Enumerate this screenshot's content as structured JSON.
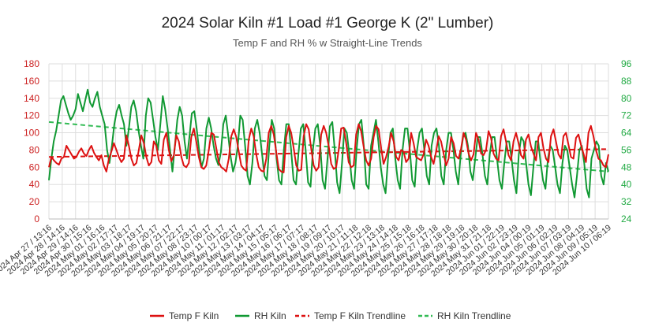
{
  "chart_data": {
    "type": "line",
    "title": "2024 Solar Kiln #1 Load #1 George K (2\" Lumber)",
    "subtitle": "Temp F and RH % w Straight-Line Trends",
    "y_left": {
      "ticks": [
        "0",
        "20",
        "40",
        "60",
        "80",
        "100",
        "120",
        "140",
        "160",
        "180"
      ],
      "lim": [
        0,
        180
      ],
      "color": "#cc2222"
    },
    "y_right": {
      "ticks": [
        "24",
        "32",
        "40",
        "48",
        "56",
        "64",
        "72",
        "80",
        "88",
        "96"
      ],
      "lim": [
        24,
        96
      ],
      "color": "#22aa44"
    },
    "grid": true,
    "legend_position": "bottom",
    "x_tick_labels": [
      "2024 Apr 27 / 13:16",
      "2024 Apr 28 / 14:16",
      "2024 Apr 29 / 14:16",
      "2024 Apr 30 / 15:16",
      "2024 May 01 / 16:16",
      "2024 May 02 / 17:17",
      "2024 May 03 / 18:17",
      "2024 May 04 / 19:17",
      "2024 May 05 / 20:17",
      "2024 May 06 / 21:17",
      "2024 May 07 / 22:17",
      "2024 May 08 / 23:17",
      "2024 May 10 / 00:17",
      "2024 May 11 / 01:17",
      "2024 May 12 / 02:17",
      "2024 May 13 / 03:17",
      "2024 May 14 / 04:17",
      "2024 May 15 / 05:17",
      "2024 May 16 / 06:17",
      "2024 May 17 / 07:17",
      "2024 May 18 / 08:17",
      "2024 May 19 / 09:17",
      "2024 May 20 / 10:17",
      "2024 May 21 / 11:18",
      "2024 May 22 / 12:18",
      "2024 May 23 / 13:18",
      "2024 May 24 / 14:18",
      "2024 May 25 / 15:18",
      "2024 May 26 / 16:18",
      "2024 May 27 / 17:18",
      "2024 May 28 / 18:18",
      "2024 May 29 / 19:18",
      "2024 May 30 / 20:18",
      "2024 May 31 / 21:18",
      "2024 Jun 01 / 22:19",
      "2024 Jun 02 / 23:19",
      "2024 Jun 04 / 00:19",
      "2024 Jun 05 / 01:19",
      "2024 Jun 06 / 02:19",
      "2024 Jun 07 / 03:19",
      "2024 Jun 08 / 04:19",
      "2024 Jun 09 / 05:19",
      "2024 Jun 10 / 06:19"
    ],
    "series": [
      {
        "name": "Temp F Kiln",
        "axis": "left",
        "color": "#dd1111",
        "style": "solid",
        "values": [
          60,
          72,
          68,
          65,
          63,
          70,
          72,
          85,
          80,
          75,
          70,
          72,
          78,
          82,
          76,
          73,
          80,
          85,
          77,
          72,
          68,
          74,
          62,
          55,
          70,
          78,
          88,
          80,
          72,
          66,
          70,
          97,
          85,
          70,
          62,
          65,
          80,
          97,
          88,
          72,
          62,
          66,
          90,
          85,
          68,
          64,
          92,
          100,
          80,
          67,
          74,
          97,
          90,
          72,
          62,
          60,
          65,
          95,
          105,
          90,
          72,
          60,
          58,
          62,
          80,
          100,
          98,
          82,
          66,
          60,
          58,
          55,
          70,
          96,
          104,
          95,
          78,
          62,
          58,
          56,
          92,
          105,
          96,
          75,
          60,
          56,
          55,
          70,
          100,
          108,
          98,
          78,
          58,
          55,
          54,
          95,
          108,
          100,
          82,
          62,
          56,
          57,
          96,
          110,
          104,
          82,
          62,
          56,
          60,
          98,
          108,
          100,
          85,
          64,
          58,
          60,
          80,
          105,
          106,
          88,
          66,
          60,
          62,
          98,
          110,
          102,
          84,
          68,
          62,
          70,
          95,
          108,
          104,
          82,
          64,
          72,
          84,
          100,
          90,
          72,
          68,
          80,
          78,
          66,
          70,
          100,
          88,
          72,
          70,
          68,
          75,
          92,
          85,
          72,
          64,
          78,
          96,
          90,
          76,
          62,
          70,
          95,
          88,
          73,
          70,
          82,
          100,
          92,
          76,
          68,
          75,
          100,
          92,
          76,
          74,
          80,
          102,
          94,
          76,
          70,
          68,
          96,
          104,
          90,
          74,
          68,
          90,
          100,
          88,
          74,
          70,
          92,
          98,
          84,
          76,
          68,
          95,
          100,
          82,
          70,
          66,
          96,
          104,
          90,
          75,
          70,
          96,
          100,
          86,
          72,
          70,
          94,
          98,
          86,
          76,
          66,
          100,
          108,
          96,
          80,
          70,
          68,
          62,
          60,
          75
        ]
      },
      {
        "name": "RH Kiln",
        "axis": "right",
        "color": "#119933",
        "style": "solid",
        "values": [
          42,
          52,
          60,
          65,
          72,
          79,
          81,
          77,
          73,
          70,
          72,
          75,
          82,
          78,
          74,
          79,
          84,
          78,
          76,
          80,
          83,
          76,
          72,
          68,
          56,
          50,
          58,
          68,
          74,
          77,
          72,
          68,
          58,
          66,
          76,
          79,
          74,
          65,
          58,
          52,
          72,
          80,
          78,
          70,
          62,
          56,
          68,
          81,
          75,
          66,
          56,
          46,
          58,
          70,
          76,
          72,
          60,
          52,
          62,
          73,
          74,
          66,
          56,
          48,
          52,
          66,
          71,
          66,
          58,
          52,
          49,
          55,
          68,
          72,
          63,
          53,
          46,
          50,
          58,
          72,
          70,
          58,
          44,
          40,
          50,
          66,
          70,
          64,
          54,
          44,
          42,
          58,
          70,
          66,
          52,
          42,
          40,
          56,
          68,
          68,
          56,
          42,
          40,
          54,
          66,
          68,
          56,
          41,
          39,
          56,
          66,
          68,
          58,
          42,
          38,
          52,
          67,
          69,
          56,
          41,
          36,
          50,
          66,
          64,
          54,
          42,
          38,
          56,
          68,
          70,
          58,
          40,
          38,
          58,
          64,
          70,
          60,
          48,
          40,
          36,
          52,
          64,
          66,
          52,
          42,
          38,
          56,
          66,
          66,
          56,
          42,
          39,
          56,
          64,
          66,
          56,
          44,
          40,
          58,
          64,
          66,
          58,
          44,
          40,
          56,
          64,
          64,
          56,
          46,
          40,
          54,
          62,
          64,
          58,
          46,
          42,
          52,
          62,
          62,
          54,
          44,
          40,
          54,
          62,
          62,
          52,
          42,
          38,
          50,
          60,
          60,
          52,
          42,
          36,
          54,
          62,
          60,
          50,
          40,
          35,
          48,
          60,
          60,
          50,
          42,
          38,
          52,
          58,
          56,
          48,
          40,
          36,
          50,
          58,
          56,
          48,
          40,
          34,
          44,
          56,
          58,
          50,
          38,
          34,
          52,
          56,
          60,
          58,
          44,
          40,
          50,
          46
        ]
      },
      {
        "name": "Temp F Kiln Trendline",
        "axis": "left",
        "color": "#dd1111",
        "style": "dashed",
        "values": [
          72,
          81
        ]
      },
      {
        "name": "RH Kiln Trendline",
        "axis": "right",
        "color": "#33bb55",
        "style": "dashed",
        "values": [
          69,
          46
        ]
      }
    ]
  }
}
